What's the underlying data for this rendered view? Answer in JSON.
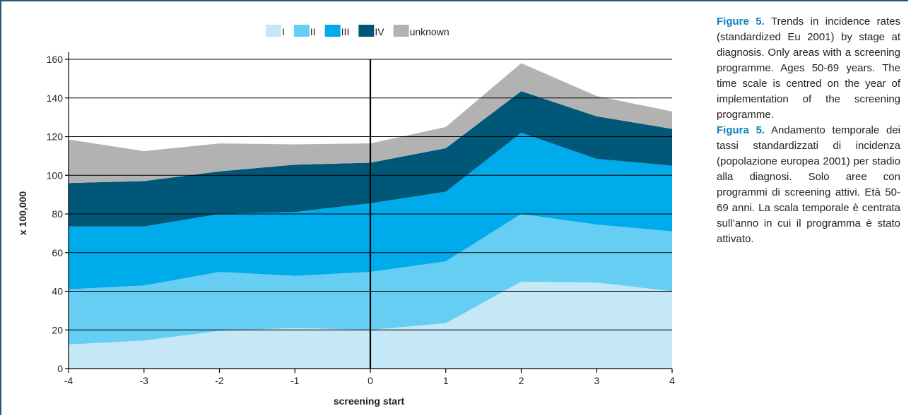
{
  "chart_data": {
    "type": "area",
    "stacked": true,
    "x": [
      -4,
      -3,
      -2,
      -1,
      0,
      1,
      2,
      3,
      4
    ],
    "xlabel": "screening start",
    "ylabel": "x 100,000",
    "ylim": [
      0,
      160
    ],
    "yticks": [
      0,
      20,
      40,
      60,
      80,
      100,
      120,
      140,
      160
    ],
    "xticks": [
      "-4",
      "-3",
      "-2",
      "-1",
      "0",
      "1",
      "2",
      "3",
      "4"
    ],
    "grid": true,
    "legend": "top",
    "series": [
      {
        "name": "I",
        "color": "#c5e8f7",
        "values": [
          12.5,
          14.5,
          19.5,
          21,
          20,
          23.5,
          45,
          44.5,
          40
        ]
      },
      {
        "name": "II",
        "color": "#66cdf3",
        "values": [
          28.5,
          28.5,
          30.5,
          27,
          30,
          32,
          35,
          30,
          31
        ]
      },
      {
        "name": "III",
        "color": "#00abeb",
        "values": [
          32.5,
          30.5,
          30,
          33,
          35.5,
          36,
          42,
          34,
          34
        ]
      },
      {
        "name": "IV",
        "color": "#005777",
        "values": [
          22.5,
          23.5,
          22,
          24.5,
          21,
          22.5,
          21.5,
          22,
          19
        ]
      },
      {
        "name": "unknown",
        "color": "#b2b2b2",
        "values": [
          22.5,
          15.5,
          14.5,
          10.5,
          10,
          11,
          14.5,
          10.5,
          9
        ]
      }
    ]
  },
  "caption": {
    "en_label": "Figure 5.",
    "en_text": "Trends in incidence rates (standardized Eu 2001) by stage at diagnosis. Only areas with a screening programme. Ages 50-69 years. The time scale is centred on the year of implementation of the screening programme.",
    "it_label": "Figura 5.",
    "it_text": "Andamento temporale dei tassi standardizzati di incidenza (popolazione europea 2001) per stadio alla diagnosi. Solo aree con programmi di screening attivi. Età 50-69 anni. La scala temporale è centrata sull’anno in cui il programma è stato attivato."
  }
}
